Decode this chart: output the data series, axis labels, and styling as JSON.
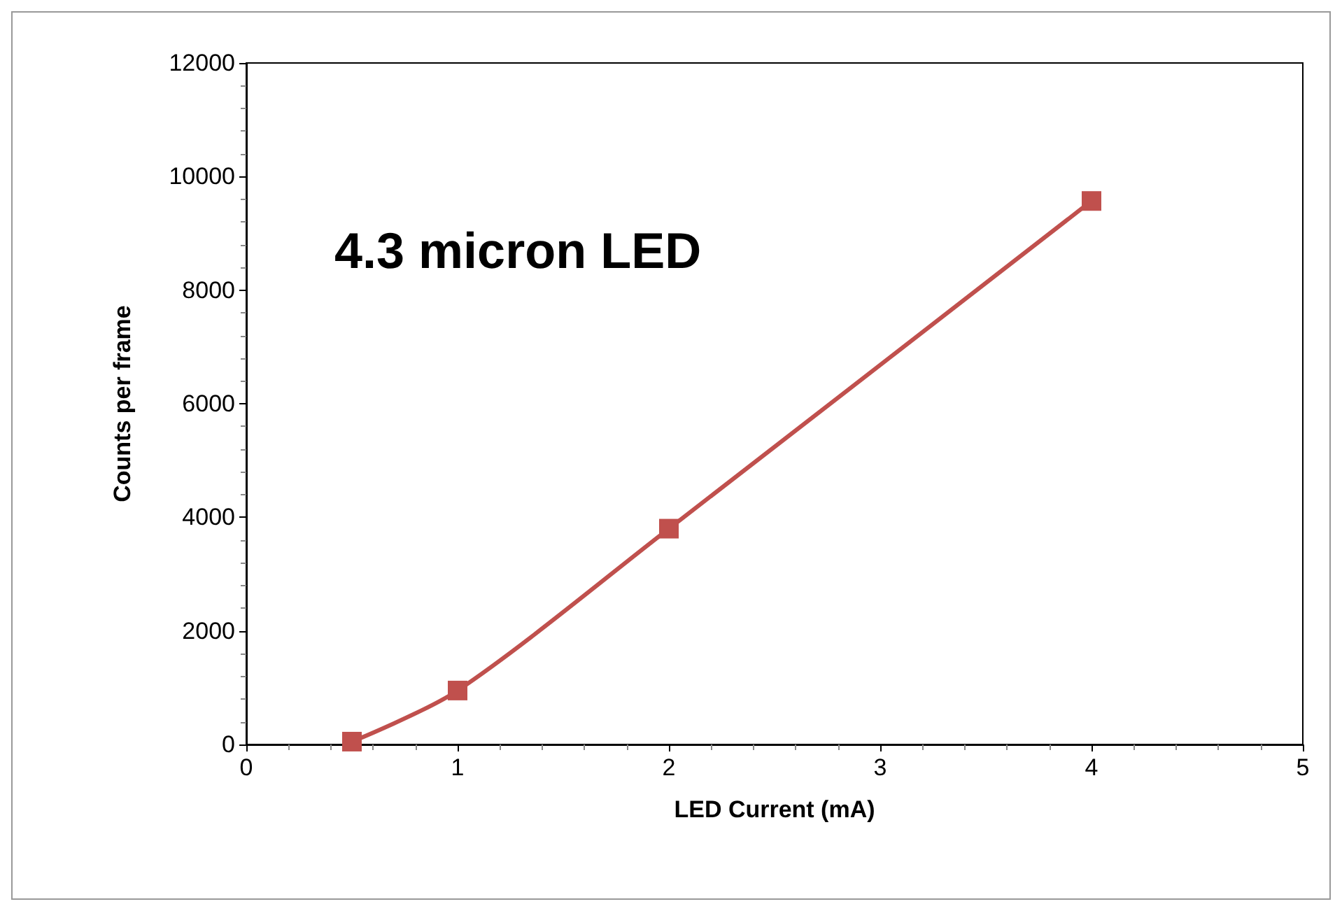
{
  "chart_data": {
    "type": "line",
    "title": "4.3 micron LED",
    "xlabel": "LED Current (mA)",
    "ylabel": "Counts per frame",
    "x": [
      0.5,
      1,
      2,
      4
    ],
    "series": [
      {
        "color": "#c0504d",
        "values": [
          50,
          950,
          3800,
          9570
        ]
      }
    ],
    "xlim": [
      0,
      5
    ],
    "xticks": [
      0,
      1,
      2,
      3,
      4,
      5
    ],
    "ylim": [
      0,
      12000
    ],
    "yticks": [
      0,
      2000,
      4000,
      6000,
      8000,
      10000,
      12000
    ],
    "marker": "square",
    "line_style": "solid",
    "grid": false
  }
}
